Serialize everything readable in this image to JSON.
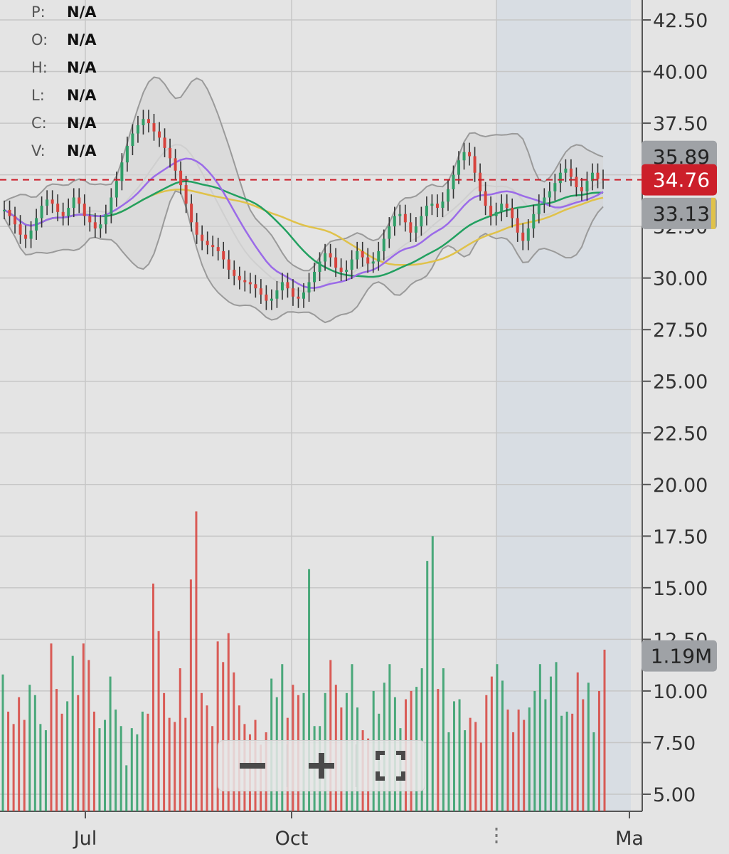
{
  "ohlc": [
    {
      "key": "P:",
      "value": "N/A"
    },
    {
      "key": "O:",
      "value": "N/A"
    },
    {
      "key": "H:",
      "value": "N/A"
    },
    {
      "key": "L:",
      "value": "N/A"
    },
    {
      "key": "C:",
      "value": "N/A"
    },
    {
      "key": "V:",
      "value": "N/A"
    }
  ],
  "colors": {
    "background": "#e4e4e4",
    "highlight_band": "#d8dde3",
    "grid": "#c6c6c6",
    "up": "#2f9e67",
    "down": "#d7433d",
    "bollinger": "#9a9a9a",
    "ma_purple": "#9b6be8",
    "ma_green": "#22a060",
    "ma_yellow": "#e0c24a",
    "ma_light": "#cfcfcf",
    "last_price": "#cc1f2a",
    "label_grey": "#9fa2a6"
  },
  "controls": {
    "zoom_out": "zoom-out",
    "zoom_in": "zoom-in",
    "fullscreen": "fullscreen"
  },
  "chart_data": {
    "type": "candlestick",
    "x_ticks": [
      "Jul",
      "Oct",
      "Ma"
    ],
    "y_ticks": [
      "42.50",
      "40.00",
      "37.50",
      "35.00",
      "32.50",
      "30.00",
      "27.50",
      "25.00",
      "22.50",
      "20.00",
      "17.50",
      "15.00",
      "12.50",
      "10.00",
      "7.50",
      "5.00"
    ],
    "y_range": [
      3.9,
      43.4
    ],
    "price_labels": {
      "upper_band": "35.89",
      "last_price": "34.76",
      "ma_value": "33.13",
      "volume": "1.19M"
    },
    "last_price": 34.76,
    "ohlc_close": [
      33.3,
      33.0,
      32.6,
      32.1,
      31.9,
      32.3,
      32.9,
      33.5,
      33.8,
      33.6,
      33.2,
      33.0,
      33.4,
      33.9,
      33.6,
      33.0,
      32.7,
      32.4,
      32.6,
      33.1,
      33.9,
      34.7,
      35.6,
      36.4,
      37.0,
      37.4,
      37.7,
      37.5,
      37.1,
      36.8,
      36.3,
      35.8,
      35.2,
      34.5,
      33.6,
      32.7,
      32.1,
      31.8,
      31.6,
      31.5,
      31.3,
      30.9,
      30.4,
      30.1,
      29.9,
      29.8,
      29.7,
      29.5,
      29.2,
      28.9,
      29.0,
      29.4,
      29.8,
      29.5,
      29.1,
      29.0,
      29.3,
      29.8,
      30.3,
      30.8,
      31.2,
      31.0,
      30.5,
      30.3,
      30.4,
      30.9,
      31.3,
      31.0,
      30.7,
      30.8,
      31.3,
      31.9,
      32.5,
      33.0,
      33.1,
      32.7,
      32.2,
      32.5,
      33.0,
      33.5,
      33.6,
      33.4,
      33.7,
      34.3,
      35.0,
      35.7,
      36.1,
      35.9,
      35.1,
      34.2,
      33.5,
      33.0,
      33.2,
      33.6,
      33.4,
      32.9,
      32.2,
      31.8,
      32.4,
      33.1,
      33.6,
      33.9,
      34.2,
      34.6,
      35.1,
      35.3,
      34.9,
      34.4,
      34.2,
      34.7,
      35.1,
      34.8,
      34.76
    ],
    "indicators": [
      "Bollinger Bands",
      "MA purple",
      "MA green",
      "MA yellow"
    ],
    "volume_values": [
      10.8,
      9.0,
      8.4,
      9.7,
      8.6,
      10.3,
      9.8,
      8.4,
      8.1,
      12.3,
      10.1,
      8.9,
      9.5,
      11.7,
      9.8,
      12.3,
      11.5,
      9.0,
      8.2,
      8.6,
      10.7,
      9.1,
      8.3,
      6.4,
      8.2,
      7.9,
      9.0,
      8.9,
      15.2,
      12.9,
      9.9,
      8.7,
      8.5,
      11.1,
      8.7,
      15.4,
      18.7,
      9.9,
      9.3,
      8.3,
      12.4,
      11.4,
      12.8,
      10.9,
      9.3,
      8.4,
      7.9,
      8.6,
      7.4,
      8.0,
      10.6,
      9.7,
      11.3,
      8.7,
      10.3,
      9.8,
      9.9,
      15.9,
      8.3,
      8.3,
      9.9,
      11.5,
      10.3,
      9.2,
      9.9,
      11.3,
      9.2,
      8.1,
      7.7,
      10.0,
      8.9,
      10.4,
      11.3,
      9.7,
      8.2,
      9.6,
      10.0,
      10.2,
      11.1,
      16.3,
      17.5,
      10.1,
      11.1,
      8.0,
      9.5,
      9.6,
      8.1,
      8.7,
      8.5,
      7.5,
      9.8,
      10.7,
      11.3,
      10.5,
      9.1,
      8.0,
      9.1,
      8.6,
      9.2,
      10.0,
      11.3,
      9.6,
      10.7,
      11.4,
      8.8,
      9.0,
      8.9,
      10.9,
      9.6,
      10.4,
      8.0,
      10.0,
      12.0
    ]
  }
}
